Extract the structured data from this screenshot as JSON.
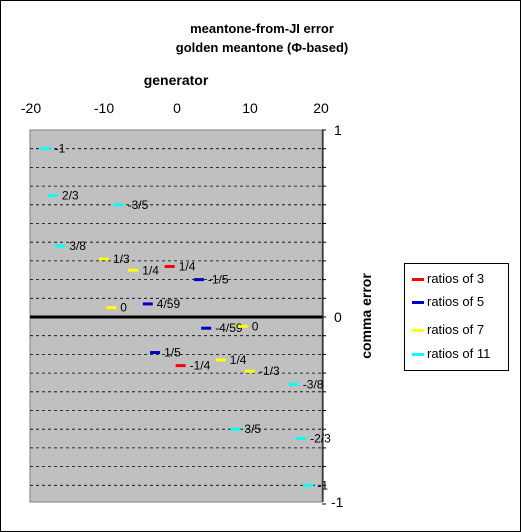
{
  "chart_data": {
    "type": "scatter",
    "title": "meantone-from-JI error",
    "subtitle": "golden meantone (Φ-based)",
    "xlabel": "generator",
    "ylabel": "comma error",
    "xlim": [
      -20,
      20
    ],
    "ylim": [
      -1,
      1
    ],
    "xticks": [
      "-20",
      "-10",
      "0",
      "10",
      "20"
    ],
    "yticks": [
      "1",
      "0",
      "-1"
    ],
    "grid": "dashed horizontal",
    "legend": "right",
    "background": "#c0c0c0",
    "series": [
      {
        "name": "ratios of 3",
        "color": "#ff0000",
        "points": [
          {
            "x": -1,
            "y": 0.27,
            "label": "1/4"
          },
          {
            "x": 0.5,
            "y": -0.26,
            "label": "-1/4"
          }
        ]
      },
      {
        "name": "ratios of 5",
        "color": "#0000cc",
        "points": [
          {
            "x": 3,
            "y": 0.2,
            "label": "-1/5"
          },
          {
            "x": -4,
            "y": 0.07,
            "label": "4/59"
          },
          {
            "x": 4,
            "y": -0.06,
            "label": "-4/59"
          },
          {
            "x": -3,
            "y": -0.19,
            "label": "1/5"
          }
        ]
      },
      {
        "name": "ratios of 7",
        "color": "#ffff00",
        "points": [
          {
            "x": -10,
            "y": 0.31,
            "label": "1/3"
          },
          {
            "x": -6,
            "y": 0.25,
            "label": "1/4"
          },
          {
            "x": -9,
            "y": 0.05,
            "label": "0"
          },
          {
            "x": 9,
            "y": -0.05,
            "label": "0"
          },
          {
            "x": 6,
            "y": -0.23,
            "label": "1/4"
          },
          {
            "x": 10,
            "y": -0.29,
            "label": "-1/3"
          }
        ]
      },
      {
        "name": "ratios of 11",
        "color": "#00ffff",
        "points": [
          {
            "x": -18,
            "y": 0.9,
            "label": "-1"
          },
          {
            "x": -17,
            "y": 0.65,
            "label": "2/3"
          },
          {
            "x": -8,
            "y": 0.6,
            "label": "-3/5"
          },
          {
            "x": -16,
            "y": 0.38,
            "label": "3/8"
          },
          {
            "x": 16,
            "y": -0.36,
            "label": "-3/8"
          },
          {
            "x": 8,
            "y": -0.6,
            "label": "3/5"
          },
          {
            "x": 17,
            "y": -0.65,
            "label": "-2/3"
          },
          {
            "x": 18,
            "y": -0.9,
            "label": "-1"
          }
        ]
      }
    ]
  }
}
